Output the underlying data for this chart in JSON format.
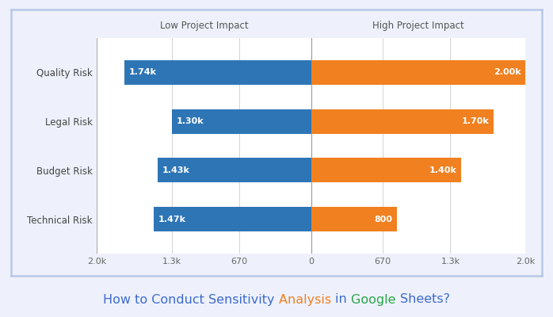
{
  "categories": [
    "Technical Risk",
    "Budget Risk",
    "Legal Risk",
    "Quality Risk"
  ],
  "low_values": [
    1470,
    1430,
    1300,
    1740
  ],
  "high_values": [
    800,
    1400,
    1700,
    2000
  ],
  "low_labels": [
    "1.47k",
    "1.43k",
    "1.30k",
    "1.74k"
  ],
  "high_labels": [
    "800",
    "1.40k",
    "1.70k",
    "2.00k"
  ],
  "blue_color": "#2e75b6",
  "orange_color": "#f08020",
  "xlim": [
    -2000,
    2000
  ],
  "xticks": [
    -2000,
    -1300,
    -670,
    0,
    670,
    1300,
    2000
  ],
  "xtick_labels": [
    "2.0k",
    "1.3k",
    "670",
    "0",
    "670",
    "1.3k",
    "2.0k"
  ],
  "low_label": "Low Project Impact",
  "high_label": "High Project Impact",
  "background_color": "#eef1fb",
  "chart_bg": "#ffffff",
  "border_color": "#b8c8e8",
  "subtitle_segments": [
    [
      "How to Conduct Sensitivity ",
      "#3d6bce"
    ],
    [
      "Analysis ",
      "#f08020"
    ],
    [
      "in ",
      "#3d6bce"
    ],
    [
      "Google ",
      "#2aa44a"
    ],
    [
      "Sheets?",
      "#3d6bce"
    ]
  ],
  "subtitle_fontsize": 11.5,
  "bar_height": 0.5,
  "bar_label_fontsize": 8.0,
  "ytick_fontsize": 8.5,
  "xtick_fontsize": 8.0,
  "header_fontsize": 8.5
}
